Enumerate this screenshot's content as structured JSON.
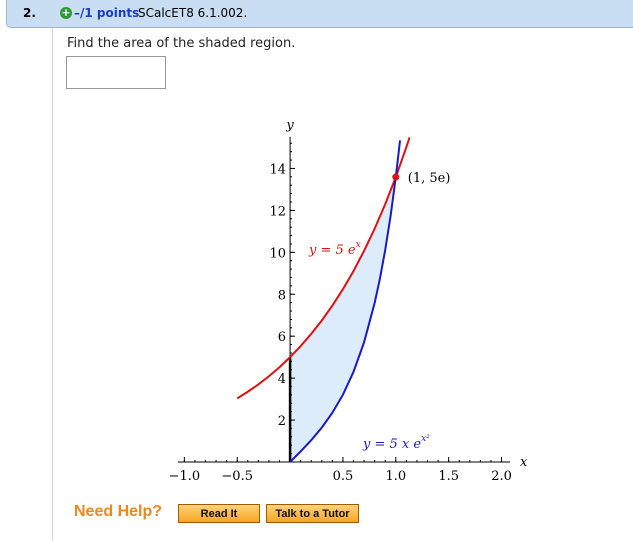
{
  "header": {
    "number": "2.",
    "points": "–/1 points",
    "problem_id": "SCalcET8 6.1.002."
  },
  "question": {
    "text": "Find the area of the shaded region."
  },
  "chart_data": {
    "type": "line",
    "x_label": "x",
    "y_label": "y",
    "xlim": [
      -1.06,
      2.08
    ],
    "ylim": [
      0,
      15.5
    ],
    "xticks": [
      {
        "value": -1,
        "label": "−1.0"
      },
      {
        "value": -0.5,
        "label": "−0.5"
      },
      0.5,
      {
        "value": 1,
        "label": "1.0"
      },
      1.5,
      {
        "value": 2,
        "label": "2.0"
      }
    ],
    "yticks": [
      2,
      4,
      6,
      8,
      10,
      12,
      14
    ],
    "series": [
      {
        "color": "#e01010",
        "label": {
          "text": "y = 5 e",
          "sup": "x"
        },
        "x": [
          -0.5,
          -0.4,
          -0.3,
          -0.2,
          -0.1,
          0,
          0.1,
          0.2,
          0.3,
          0.4,
          0.5,
          0.6,
          0.7,
          0.8,
          0.9,
          1.0,
          1.1,
          1.13
        ],
        "values": [
          3.03,
          3.35,
          3.7,
          4.09,
          4.52,
          5,
          5.53,
          6.11,
          6.75,
          7.46,
          8.24,
          9.11,
          10.07,
          11.13,
          12.3,
          13.59,
          15.02,
          15.48
        ]
      },
      {
        "color": "#1a1ac8",
        "label": {
          "text": "y = 5 x e",
          "sup": "x²"
        },
        "x": [
          0,
          0.1,
          0.2,
          0.3,
          0.4,
          0.5,
          0.6,
          0.7,
          0.8,
          0.85,
          0.9,
          0.95,
          1.0,
          1.04
        ],
        "values": [
          0,
          0.505,
          1.04,
          1.64,
          2.35,
          3.21,
          4.3,
          5.71,
          7.59,
          8.75,
          10.12,
          11.71,
          13.59,
          15.34
        ]
      }
    ],
    "point": {
      "x": 1,
      "y": 13.59,
      "label": "(1, 5e)",
      "color": "#e01010"
    },
    "shade_color": "#dcecfb"
  },
  "help": {
    "label": "Need Help?",
    "buttons": [
      "Read It",
      "Talk to a Tutor"
    ]
  }
}
